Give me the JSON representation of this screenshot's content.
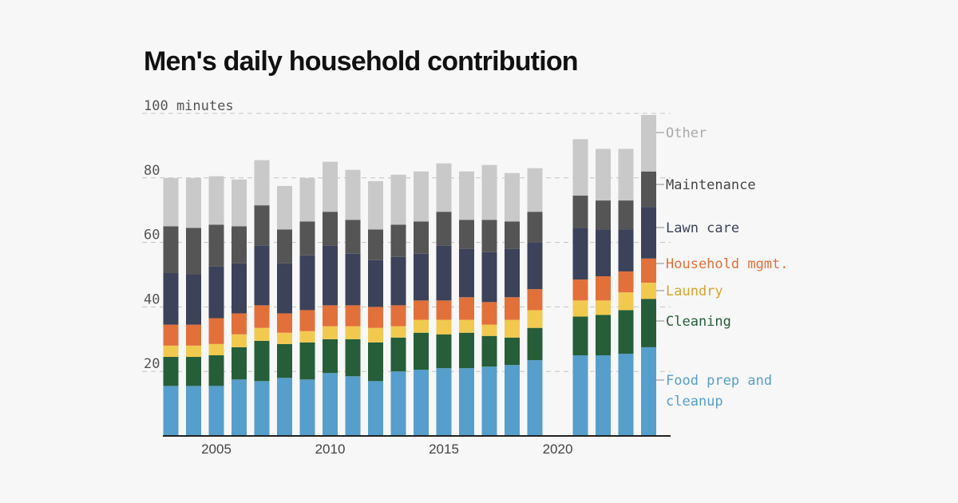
{
  "chart_data": {
    "type": "bar",
    "stacked": true,
    "title": "Men's daily household contribution",
    "ylabel": "minutes",
    "ylim": [
      0,
      100
    ],
    "yticks": [
      20,
      40,
      60,
      80,
      100
    ],
    "ytick_labels": [
      "20",
      "40",
      "60",
      "80",
      "100 minutes"
    ],
    "xticks": [
      2005,
      2010,
      2015,
      2020
    ],
    "xtick_labels": [
      "2005",
      "2010",
      "2015",
      "2020"
    ],
    "gridlines": true,
    "legend_placement": "right, inline labels at last bar",
    "categories": [
      2003,
      2004,
      2005,
      2006,
      2007,
      2008,
      2009,
      2010,
      2011,
      2012,
      2013,
      2014,
      2015,
      2016,
      2017,
      2018,
      2019,
      2021,
      2022,
      2023,
      2024
    ],
    "series": [
      {
        "name": "Food prep and cleanup",
        "label_lines": [
          "Food prep and",
          "cleanup"
        ],
        "color": "#569ecb",
        "values": [
          15.5,
          15.5,
          15.5,
          17.5,
          17,
          18,
          17.5,
          19.5,
          18.5,
          17,
          20,
          20.5,
          21,
          21,
          21.5,
          22,
          23.5,
          25,
          25,
          25.5,
          27.5
        ]
      },
      {
        "name": "Cleaning",
        "label_lines": [
          "Cleaning"
        ],
        "color": "#255e38",
        "values": [
          9,
          9,
          9.5,
          10,
          12.5,
          10.5,
          11.5,
          10.5,
          11.5,
          12,
          10.5,
          11.5,
          10.5,
          11,
          9.5,
          8.5,
          10,
          12,
          12.5,
          13.5,
          15
        ]
      },
      {
        "name": "Laundry",
        "label_lines": [
          "Laundry"
        ],
        "color": "#f2c94f",
        "values": [
          3.5,
          3.5,
          3.5,
          4,
          4,
          3.5,
          3.5,
          4,
          4,
          4.5,
          3.5,
          4,
          4.5,
          4,
          3.5,
          5.5,
          5.5,
          5,
          4.5,
          5.5,
          5
        ]
      },
      {
        "name": "Household mgmt.",
        "label_lines": [
          "Household mgmt."
        ],
        "color": "#e2703a",
        "values": [
          6.5,
          6.5,
          8,
          6.5,
          7,
          6,
          6.5,
          6.5,
          6.5,
          6.5,
          6.5,
          6,
          6,
          7,
          7,
          7,
          6.5,
          6.5,
          7.5,
          6.5,
          7.5
        ]
      },
      {
        "name": "Lawn care",
        "label_lines": [
          "Lawn care"
        ],
        "color": "#3b4259",
        "values": [
          16,
          15.5,
          16,
          15.5,
          18.5,
          15.5,
          17,
          18.5,
          16,
          14.5,
          15,
          14.5,
          17,
          15,
          15.5,
          15,
          14.5,
          16,
          14.5,
          13,
          16
        ]
      },
      {
        "name": "Maintenance",
        "label_lines": [
          "Maintenance"
        ],
        "color": "#555555",
        "values": [
          14.5,
          14.5,
          13,
          11.5,
          12.5,
          10.5,
          10.5,
          10.5,
          10.5,
          9.5,
          10,
          10,
          10.5,
          9,
          10,
          8.5,
          9.5,
          10,
          9,
          9,
          11
        ]
      },
      {
        "name": "Other",
        "label_lines": [
          "Other"
        ],
        "color": "#c9c9c9",
        "values": [
          15,
          15.5,
          15,
          14.5,
          14,
          13.5,
          13.5,
          15.5,
          15.5,
          15,
          15.5,
          15.5,
          15,
          15,
          17,
          15,
          13.5,
          17.5,
          16,
          16,
          17.5
        ]
      }
    ]
  }
}
